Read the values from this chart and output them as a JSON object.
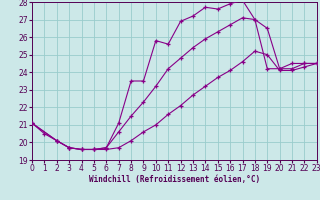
{
  "xlabel": "Windchill (Refroidissement éolien,°C)",
  "bg_color": "#cce8e8",
  "grid_color": "#99cccc",
  "line_color": "#880088",
  "line1_x": [
    0,
    1,
    2,
    3,
    4,
    5,
    6,
    7,
    8,
    9,
    10,
    11,
    12,
    13,
    14,
    15,
    16,
    17,
    18,
    19,
    20,
    21,
    22,
    23
  ],
  "line1_y": [
    21.1,
    20.5,
    20.1,
    19.7,
    19.6,
    19.6,
    19.7,
    21.1,
    23.5,
    23.5,
    25.8,
    25.6,
    26.9,
    27.2,
    27.7,
    27.6,
    27.9,
    28.1,
    27.0,
    26.5,
    24.2,
    24.2,
    24.5,
    24.5
  ],
  "line2_x": [
    0,
    2,
    3,
    4,
    5,
    6,
    7,
    8,
    9,
    10,
    11,
    12,
    13,
    14,
    15,
    16,
    17,
    18,
    19,
    20,
    21,
    22,
    23
  ],
  "line2_y": [
    21.1,
    20.1,
    19.7,
    19.6,
    19.6,
    19.7,
    20.6,
    21.5,
    22.3,
    23.2,
    24.2,
    24.8,
    25.4,
    25.9,
    26.3,
    26.7,
    27.1,
    27.0,
    24.2,
    24.2,
    24.5,
    24.5,
    24.5
  ],
  "line3_x": [
    0,
    2,
    3,
    4,
    5,
    6,
    7,
    8,
    9,
    10,
    11,
    12,
    13,
    14,
    15,
    16,
    17,
    18,
    19,
    20,
    21,
    22,
    23
  ],
  "line3_y": [
    21.1,
    20.1,
    19.7,
    19.6,
    19.6,
    19.6,
    19.7,
    20.1,
    20.6,
    21.0,
    21.6,
    22.1,
    22.7,
    23.2,
    23.7,
    24.1,
    24.6,
    25.2,
    25.0,
    24.1,
    24.1,
    24.3,
    24.5
  ],
  "xlim": [
    0,
    23
  ],
  "ylim": [
    19,
    28
  ],
  "yticks": [
    19,
    20,
    21,
    22,
    23,
    24,
    25,
    26,
    27,
    28
  ],
  "xticks": [
    0,
    1,
    2,
    3,
    4,
    5,
    6,
    7,
    8,
    9,
    10,
    11,
    12,
    13,
    14,
    15,
    16,
    17,
    18,
    19,
    20,
    21,
    22,
    23
  ]
}
